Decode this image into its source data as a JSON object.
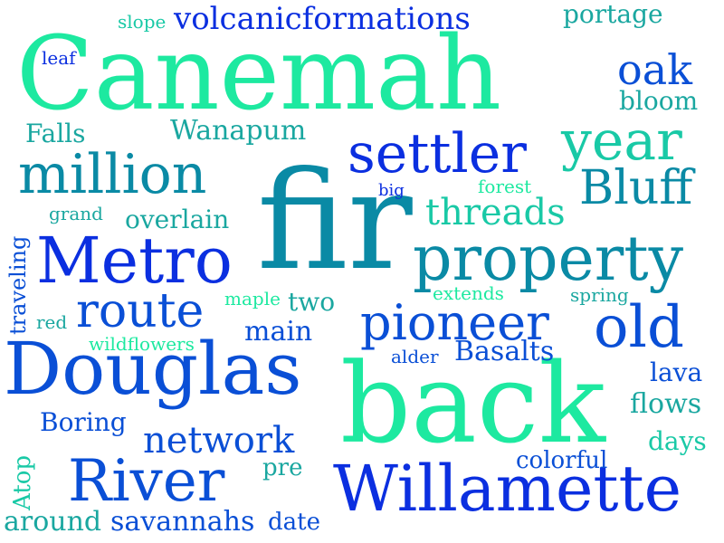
{
  "colors": {
    "background": "#ffffff",
    "mint": "#1de9a0",
    "teal": "#1aa7a0",
    "deep_teal": "#0a8aa5",
    "blue": "#0a4fd6",
    "royal": "#0b2fe0",
    "sea": "#19c9a6"
  },
  "words": [
    {
      "id": "canemah",
      "text": "Canemah",
      "color": "mint"
    },
    {
      "id": "fir",
      "text": "fir",
      "color": "deep_teal"
    },
    {
      "id": "back",
      "text": "back",
      "color": "mint"
    },
    {
      "id": "douglas",
      "text": "Douglas",
      "color": "blue"
    },
    {
      "id": "willamette",
      "text": "Willamette",
      "color": "royal"
    },
    {
      "id": "metro",
      "text": "Metro",
      "color": "royal"
    },
    {
      "id": "property",
      "text": "property",
      "color": "deep_teal"
    },
    {
      "id": "river",
      "text": "River",
      "color": "blue"
    },
    {
      "id": "million",
      "text": "million",
      "color": "deep_teal"
    },
    {
      "id": "settler",
      "text": "settler",
      "color": "royal"
    },
    {
      "id": "pioneer",
      "text": "pioneer",
      "color": "blue"
    },
    {
      "id": "old",
      "text": "old",
      "color": "blue"
    },
    {
      "id": "year",
      "text": "year",
      "color": "sea"
    },
    {
      "id": "bluff",
      "text": "Bluff",
      "color": "deep_teal"
    },
    {
      "id": "route",
      "text": "route",
      "color": "blue"
    },
    {
      "id": "volcanicformations",
      "text": "volcanicformations",
      "color": "royal"
    },
    {
      "id": "threads",
      "text": "threads",
      "color": "sea"
    },
    {
      "id": "network",
      "text": "network",
      "color": "blue"
    },
    {
      "id": "oak",
      "text": "oak",
      "color": "blue"
    },
    {
      "id": "wanapum",
      "text": "Wanapum",
      "color": "teal"
    },
    {
      "id": "basalts",
      "text": "Basalts",
      "color": "blue"
    },
    {
      "id": "boring",
      "text": "Boring",
      "color": "blue"
    },
    {
      "id": "savannahs",
      "text": "savannahs",
      "color": "blue"
    },
    {
      "id": "around",
      "text": "around",
      "color": "teal"
    },
    {
      "id": "overlain",
      "text": "overlain",
      "color": "teal"
    },
    {
      "id": "main",
      "text": "main",
      "color": "blue"
    },
    {
      "id": "portage",
      "text": "portage",
      "color": "teal"
    },
    {
      "id": "bloom",
      "text": "bloom",
      "color": "teal"
    },
    {
      "id": "falls",
      "text": "Falls",
      "color": "teal"
    },
    {
      "id": "flows",
      "text": "flows",
      "color": "teal"
    },
    {
      "id": "lava",
      "text": "lava",
      "color": "blue"
    },
    {
      "id": "days",
      "text": "days",
      "color": "sea"
    },
    {
      "id": "colorful",
      "text": "colorful",
      "color": "blue"
    },
    {
      "id": "date",
      "text": "date",
      "color": "blue"
    },
    {
      "id": "two",
      "text": "two",
      "color": "teal"
    },
    {
      "id": "pre",
      "text": "pre",
      "color": "teal"
    },
    {
      "id": "traveling",
      "text": "traveling",
      "color": "blue"
    },
    {
      "id": "atop",
      "text": "Atop",
      "color": "sea"
    },
    {
      "id": "wildflowers",
      "text": "wildflowers",
      "color": "mint"
    },
    {
      "id": "slope",
      "text": "slope",
      "color": "sea"
    },
    {
      "id": "leaf",
      "text": "leaf",
      "color": "royal"
    },
    {
      "id": "grand",
      "text": "grand",
      "color": "teal"
    },
    {
      "id": "big",
      "text": "big",
      "color": "royal"
    },
    {
      "id": "forest",
      "text": "forest",
      "color": "mint"
    },
    {
      "id": "extends",
      "text": "extends",
      "color": "mint"
    },
    {
      "id": "spring",
      "text": "spring",
      "color": "teal"
    },
    {
      "id": "maple",
      "text": "maple",
      "color": "mint"
    },
    {
      "id": "red",
      "text": "red",
      "color": "teal"
    },
    {
      "id": "alder",
      "text": "alder",
      "color": "blue"
    }
  ]
}
